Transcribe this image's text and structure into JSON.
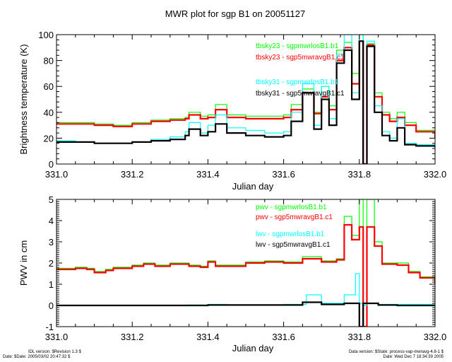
{
  "title": "MWR plot for sgp B1 on 20051127",
  "colors": {
    "green": "#00ff00",
    "red": "#ff0000",
    "cyan": "#00ffff",
    "black": "#000000"
  },
  "footer": {
    "idl_version": "IDL version: $Revision 1.3 $",
    "date": "Date: $Date: 2005/03/02 20:47:32 $",
    "data_version": "Data version: $State: process-vap-mwravg-4.8-1 $",
    "date_run": "Date: Wed Dec  7 18:34:39 2005"
  },
  "chart_data": [
    {
      "type": "line",
      "title": "MWR plot for sgp B1 on 20051127",
      "xlabel": "Julian day",
      "ylabel": "Brightness temperature (K)",
      "xlim": [
        331.0,
        332.0
      ],
      "ylim": [
        0,
        100
      ],
      "xticks": [
        "331.0",
        "331.2",
        "331.4",
        "331.6",
        "331.8",
        "332.0"
      ],
      "yticks": [
        "0",
        "20",
        "40",
        "60",
        "80",
        "100"
      ],
      "grid": false,
      "legend_position": "top-right",
      "legend": [
        {
          "label": "tbsky23 - sgpmwrlosB1.b1",
          "color": "#00ff00"
        },
        {
          "label": "tbsky23 - sgp5mwravgB1.c1",
          "color": "#ff0000"
        },
        {
          "label": "tbsky31 - sgpmwrlosB1.b1",
          "color": "#00ffff"
        },
        {
          "label": "tbsky31 - sgp5mwravgB1.c1",
          "color": "#000000"
        }
      ],
      "series": [
        {
          "name": "tbsky23 - sgpmwrlosB1.b1",
          "color": "#00ff00",
          "x": [
            331.0,
            331.05,
            331.1,
            331.15,
            331.2,
            331.25,
            331.3,
            331.34,
            331.35,
            331.38,
            331.4,
            331.42,
            331.45,
            331.5,
            331.55,
            331.6,
            331.62,
            331.65,
            331.68,
            331.7,
            331.72,
            331.74,
            331.76,
            331.78,
            331.8,
            331.81,
            331.82,
            331.84,
            331.86,
            331.88,
            331.9,
            331.92,
            331.95,
            332.0
          ],
          "y": [
            32,
            32,
            31,
            30,
            32,
            34,
            35,
            36,
            40,
            37,
            38,
            46,
            38,
            37,
            37,
            38,
            46,
            58,
            40,
            60,
            45,
            88,
            94,
            70,
            100,
            0,
            93,
            55,
            40,
            35,
            40,
            32,
            26,
            21
          ]
        },
        {
          "name": "tbsky23 - sgp5mwravgB1.c1",
          "color": "#ff0000",
          "x": [
            331.0,
            331.05,
            331.1,
            331.15,
            331.2,
            331.25,
            331.3,
            331.34,
            331.35,
            331.38,
            331.4,
            331.42,
            331.45,
            331.5,
            331.55,
            331.6,
            331.62,
            331.65,
            331.68,
            331.7,
            331.72,
            331.74,
            331.76,
            331.78,
            331.8,
            331.81,
            331.82,
            331.84,
            331.86,
            331.88,
            331.9,
            331.92,
            331.95,
            332.0
          ],
          "y": [
            31,
            31,
            30,
            29,
            31,
            33,
            34,
            35,
            38,
            35,
            36,
            42,
            36,
            35,
            35,
            36,
            42,
            55,
            39,
            52,
            42,
            80,
            90,
            62,
            95,
            0,
            92,
            52,
            38,
            33,
            36,
            30,
            25,
            20
          ]
        },
        {
          "name": "tbsky31 - sgpmwrlosB1.b1",
          "color": "#00ffff",
          "x": [
            331.0,
            331.05,
            331.1,
            331.15,
            331.2,
            331.25,
            331.3,
            331.34,
            331.35,
            331.38,
            331.4,
            331.42,
            331.45,
            331.5,
            331.55,
            331.6,
            331.62,
            331.65,
            331.68,
            331.7,
            331.72,
            331.74,
            331.76,
            331.78,
            331.8,
            331.81,
            331.82,
            331.84,
            331.86,
            331.88,
            331.9,
            331.92,
            331.95,
            332.0
          ],
          "y": [
            18,
            17,
            16,
            16,
            17,
            19,
            21,
            25,
            32,
            24,
            30,
            38,
            28,
            26,
            24,
            25,
            40,
            62,
            30,
            60,
            35,
            85,
            100,
            55,
            100,
            0,
            95,
            45,
            25,
            20,
            35,
            16,
            15,
            14
          ]
        },
        {
          "name": "tbsky31 - sgp5mwravgB1.c1",
          "color": "#000000",
          "x": [
            331.0,
            331.05,
            331.1,
            331.15,
            331.2,
            331.25,
            331.3,
            331.34,
            331.35,
            331.38,
            331.4,
            331.42,
            331.45,
            331.5,
            331.55,
            331.6,
            331.62,
            331.65,
            331.68,
            331.7,
            331.72,
            331.74,
            331.76,
            331.78,
            331.8,
            331.81,
            331.82,
            331.84,
            331.86,
            331.88,
            331.9,
            331.92,
            331.95,
            332.0
          ],
          "y": [
            17,
            17,
            16,
            16,
            17,
            18,
            19,
            22,
            27,
            22,
            25,
            31,
            24,
            22,
            21,
            22,
            33,
            55,
            27,
            50,
            30,
            78,
            88,
            50,
            95,
            0,
            91,
            40,
            22,
            18,
            28,
            15,
            14,
            13
          ]
        }
      ]
    },
    {
      "type": "line",
      "xlabel": "Julian day",
      "ylabel": "PWV in cm",
      "xlim": [
        331.0,
        332.0
      ],
      "ylim": [
        -1,
        5
      ],
      "xticks": [
        "331.0",
        "331.2",
        "331.4",
        "331.6",
        "331.8",
        "332.0"
      ],
      "yticks": [
        "-1",
        "0",
        "1",
        "2",
        "3",
        "4",
        "5"
      ],
      "grid": false,
      "legend_position": "top-right",
      "legend": [
        {
          "label": "pwv - sgpmwrlosB1.b1",
          "color": "#00ff00"
        },
        {
          "label": "pwv - sgp5mwravgB1.c1",
          "color": "#ff0000"
        },
        {
          "label": "lwv - sgpmwrlosB1.b1",
          "color": "#00ffff"
        },
        {
          "label": "lwv - sgp5mwravgB1.c1",
          "color": "#000000"
        }
      ],
      "series": [
        {
          "name": "pwv - sgpmwrlosB1.b1",
          "color": "#00ff00",
          "x": [
            331.0,
            331.03,
            331.05,
            331.08,
            331.1,
            331.13,
            331.15,
            331.2,
            331.23,
            331.26,
            331.3,
            331.35,
            331.38,
            331.4,
            331.42,
            331.45,
            331.5,
            331.55,
            331.6,
            331.65,
            331.7,
            331.74,
            331.76,
            331.78,
            331.8,
            331.81,
            331.82,
            331.84,
            331.86,
            331.9,
            331.93,
            331.96,
            332.0
          ],
          "y": [
            1.75,
            1.75,
            1.8,
            1.75,
            1.6,
            1.7,
            1.8,
            1.9,
            2.0,
            1.9,
            2.0,
            1.9,
            1.85,
            2.1,
            1.9,
            1.9,
            2.05,
            2.1,
            2.05,
            2.3,
            2.1,
            2.2,
            4.2,
            3.3,
            5.0,
            0,
            5.0,
            3.0,
            2.0,
            2.0,
            1.6,
            1.35,
            1.05
          ]
        },
        {
          "name": "pwv - sgp5mwravgB1.c1",
          "color": "#ff0000",
          "x": [
            331.0,
            331.03,
            331.05,
            331.08,
            331.1,
            331.13,
            331.15,
            331.2,
            331.23,
            331.26,
            331.3,
            331.35,
            331.38,
            331.4,
            331.42,
            331.45,
            331.5,
            331.55,
            331.6,
            331.65,
            331.7,
            331.74,
            331.76,
            331.78,
            331.8,
            331.81,
            331.82,
            331.84,
            331.86,
            331.9,
            331.93,
            331.96,
            332.0
          ],
          "y": [
            1.7,
            1.7,
            1.75,
            1.7,
            1.55,
            1.65,
            1.75,
            1.85,
            1.95,
            1.85,
            1.95,
            1.85,
            1.8,
            2.05,
            1.85,
            1.85,
            2.0,
            2.05,
            2.0,
            2.2,
            2.05,
            2.15,
            3.8,
            3.1,
            3.7,
            -1.0,
            3.7,
            2.8,
            1.95,
            1.9,
            1.55,
            1.3,
            1.0
          ]
        },
        {
          "name": "lwv - sgpmwrlosB1.b1",
          "color": "#00ffff",
          "x": [
            331.0,
            331.2,
            331.34,
            331.4,
            331.45,
            331.6,
            331.66,
            331.7,
            331.76,
            331.79,
            331.8,
            331.81,
            331.82,
            331.85,
            331.9,
            332.0
          ],
          "y": [
            0,
            0,
            0.02,
            0.05,
            0.03,
            0.05,
            0.5,
            0.1,
            0.5,
            1.5,
            0.1,
            0,
            0.1,
            0.05,
            0.05,
            0
          ]
        },
        {
          "name": "lwv - sgp5mwravgB1.c1",
          "color": "#000000",
          "x": [
            331.0,
            331.2,
            331.34,
            331.4,
            331.45,
            331.6,
            331.65,
            331.7,
            331.76,
            331.79,
            331.8,
            331.81,
            331.82,
            331.85,
            331.9,
            332.0
          ],
          "y": [
            0,
            0,
            0,
            0.02,
            0.02,
            0.02,
            0.15,
            0.05,
            0.1,
            0.1,
            -1.0,
            0.1,
            0.1,
            0.02,
            0,
            0
          ]
        }
      ]
    }
  ]
}
